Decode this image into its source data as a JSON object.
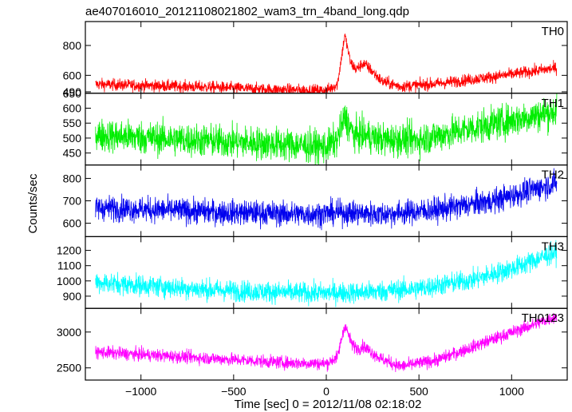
{
  "chart_data": {
    "type": "line",
    "title": "ae407016010_20121108021802_wam3_trn_4band_long.qdp",
    "xlabel": "Time [sec] 0 = 2012/11/08 02:18:02",
    "ylabel": "Counts/sec",
    "xlim": [
      -1300,
      1300
    ],
    "xticks": [
      -1000,
      -500,
      0,
      500,
      1000
    ],
    "xtick_labels": [
      "−1000",
      "−500",
      "0",
      "500",
      "1000"
    ],
    "x_start": -1245,
    "x_end": 1245,
    "grid": false,
    "panels": [
      {
        "name": "TH0",
        "color": "#ff0000",
        "ylim": [
          480,
          960
        ],
        "yticks": [
          600,
          800
        ],
        "ytick_labels": [
          "600",
          "800"
        ],
        "edge_tick": {
          "value": 490,
          "label": "490"
        },
        "trend": [
          [
            -1245,
            540
          ],
          [
            -600,
            520
          ],
          [
            -300,
            505
          ],
          [
            0,
            498
          ],
          [
            60,
            540
          ],
          [
            100,
            870
          ],
          [
            130,
            690
          ],
          [
            160,
            640
          ],
          [
            200,
            680
          ],
          [
            230,
            650
          ],
          [
            300,
            560
          ],
          [
            400,
            525
          ],
          [
            600,
            545
          ],
          [
            900,
            590
          ],
          [
            1245,
            650
          ]
        ],
        "noise": 20
      },
      {
        "name": "TH1",
        "color": "#00ee00",
        "ylim": [
          410,
          650
        ],
        "yticks": [
          450,
          500,
          550,
          600
        ],
        "ytick_labels": [
          "450",
          "500",
          "550",
          "600"
        ],
        "edge_tick": {
          "value": 650,
          "label": "650"
        },
        "trend": [
          [
            -1245,
            510
          ],
          [
            -600,
            490
          ],
          [
            -200,
            478
          ],
          [
            0,
            470
          ],
          [
            60,
            495
          ],
          [
            100,
            570
          ],
          [
            150,
            510
          ],
          [
            200,
            510
          ],
          [
            300,
            495
          ],
          [
            500,
            495
          ],
          [
            800,
            535
          ],
          [
            1245,
            590
          ]
        ],
        "noise": 28
      },
      {
        "name": "TH2",
        "color": "#0000ee",
        "ylim": [
          540,
          860
        ],
        "yticks": [
          600,
          700,
          800
        ],
        "ytick_labels": [
          "600",
          "700",
          "800"
        ],
        "trend": [
          [
            -1245,
            670
          ],
          [
            -600,
            650
          ],
          [
            -100,
            640
          ],
          [
            100,
            648
          ],
          [
            300,
            640
          ],
          [
            600,
            660
          ],
          [
            900,
            700
          ],
          [
            1245,
            780
          ]
        ],
        "noise": 28
      },
      {
        "name": "TH3",
        "color": "#00ffff",
        "ylim": [
          820,
          1290
        ],
        "yticks": [
          900,
          1000,
          1100,
          1200
        ],
        "ytick_labels": [
          "900",
          "1000",
          "1100",
          "1200"
        ],
        "trend": [
          [
            -1245,
            990
          ],
          [
            -600,
            940
          ],
          [
            -100,
            920
          ],
          [
            200,
            925
          ],
          [
            500,
            950
          ],
          [
            800,
            1010
          ],
          [
            1000,
            1080
          ],
          [
            1245,
            1190
          ]
        ],
        "noise": 35
      },
      {
        "name": "TH0123",
        "color": "#ff00ff",
        "ylim": [
          2330,
          3330
        ],
        "yticks": [
          2500,
          3000
        ],
        "ytick_labels": [
          "2500",
          "3000"
        ],
        "trend": [
          [
            -1245,
            2720
          ],
          [
            -600,
            2630
          ],
          [
            -200,
            2570
          ],
          [
            0,
            2560
          ],
          [
            60,
            2650
          ],
          [
            100,
            3100
          ],
          [
            140,
            2820
          ],
          [
            170,
            2770
          ],
          [
            200,
            2800
          ],
          [
            300,
            2620
          ],
          [
            400,
            2520
          ],
          [
            600,
            2610
          ],
          [
            900,
            2900
          ],
          [
            1245,
            3220
          ]
        ],
        "noise": 45
      }
    ]
  }
}
